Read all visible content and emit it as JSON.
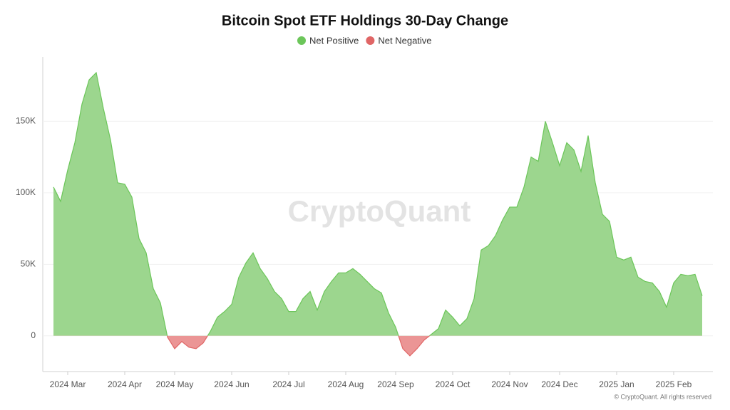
{
  "chart_data": {
    "type": "area",
    "title": "Bitcoin Spot ETF Holdings 30-Day Change",
    "legend": [
      {
        "name": "Net Positive",
        "color": "#6cc65a"
      },
      {
        "name": "Net Negative",
        "color": "#e06666"
      }
    ],
    "positive_fill": "#9cd68e",
    "negative_fill": "#eb9595",
    "watermark": "CryptoQuant",
    "credit": "© CryptoQuant. All rights reserved",
    "categories": [
      null,
      null,
      "2024 Mar",
      null,
      null,
      null,
      null,
      null,
      null,
      null,
      "2024 Apr",
      null,
      null,
      null,
      null,
      null,
      null,
      "2024 May",
      null,
      null,
      null,
      null,
      null,
      null,
      null,
      "2024 Jun",
      null,
      null,
      null,
      null,
      null,
      null,
      null,
      "2024 Jul",
      null,
      null,
      null,
      null,
      null,
      null,
      null,
      "2024 Aug",
      null,
      null,
      null,
      null,
      null,
      null,
      "2024 Sep",
      null,
      null,
      null,
      null,
      null,
      null,
      null,
      "2024 Oct",
      null,
      null,
      null,
      null,
      null,
      null,
      null,
      "2024 Nov",
      null,
      null,
      null,
      null,
      null,
      null,
      "2024 Dec",
      null,
      null,
      null,
      null,
      null,
      null,
      null,
      "2025 Jan",
      null,
      null,
      null,
      null,
      null,
      null,
      null,
      "2025 Feb",
      null,
      null,
      null,
      null
    ],
    "values": [
      104000,
      94000,
      116000,
      135000,
      162000,
      179000,
      184000,
      159000,
      137000,
      107000,
      106000,
      97000,
      68000,
      58000,
      33000,
      23000,
      -1000,
      -9000,
      -4000,
      -8000,
      -9000,
      -5000,
      3000,
      13000,
      17000,
      22000,
      41000,
      51000,
      58000,
      47000,
      40000,
      31000,
      26000,
      17000,
      17000,
      26000,
      31000,
      18000,
      31000,
      38000,
      44000,
      44000,
      47000,
      43000,
      38000,
      33000,
      30000,
      16000,
      6000,
      -9000,
      -14000,
      -9000,
      -3000,
      1000,
      5000,
      18000,
      13000,
      7000,
      12000,
      26000,
      60000,
      63000,
      70000,
      81000,
      90000,
      90000,
      104000,
      125000,
      122000,
      150000,
      135000,
      119000,
      135000,
      130000,
      115000,
      140000,
      107000,
      85000,
      80000,
      55000,
      53000,
      55000,
      41000,
      38000,
      37000,
      31000,
      20000,
      37000,
      43000,
      42000,
      43000,
      28000
    ],
    "ylim": [
      -25000,
      195000
    ],
    "yticks": [
      {
        "value": 0,
        "label": "0"
      },
      {
        "value": 50000,
        "label": "50K"
      },
      {
        "value": 100000,
        "label": "100K"
      },
      {
        "value": 150000,
        "label": "150K"
      }
    ],
    "grid": true
  }
}
